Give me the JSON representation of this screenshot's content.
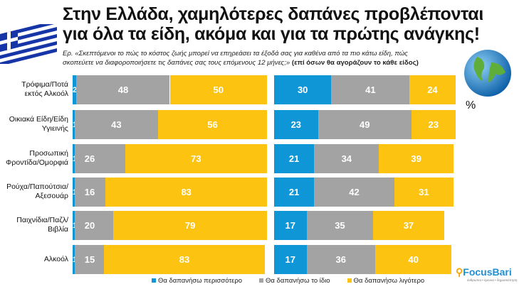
{
  "title_line1": "Στην Ελλάδα, χαμηλότερες δαπάνες προβλέπονται",
  "title_line2": "για όλα τα είδη, ακόμα και για τα πρώτης ανάγκης!",
  "question_line1": "Ερ. «Σκεπτόμενοι το πώς το κόστος ζωής μπορεί να επηρεάσει τα έξοδά σας για καθένα από τα πιο κάτω είδη, πώς",
  "question_line2": "σκοπεύετε να διαφοροποιήσετε τις δαπάνες σας τους επόμενους 12 μήνες;»",
  "question_note": "(επί όσων θα αγοράζουν το κάθε είδος)",
  "percent_label": "%",
  "logo": {
    "name": "FocusBari",
    "tagline": "άνθρωποι • έρευνα • δημοσκόπηση"
  },
  "colors": {
    "more": "#0f96d6",
    "same": "#a3a3a3",
    "less": "#fcc410"
  },
  "chart_data": [
    {
      "type": "bar",
      "orientation": "horizontal",
      "stacked": true,
      "region": "Ελλάδα",
      "categories": [
        [
          "Τρόφιμα/Ποτά",
          "εκτός Αλκοόλ"
        ],
        [
          "Οικιακά Είδη/Είδη",
          "Υγιεινής"
        ],
        [
          "Προσωπική",
          "Φροντίδα/Ομορφιά"
        ],
        [
          "Ρούχα/Παπούτσια/",
          "Αξεσουάρ"
        ],
        [
          "Παιχνίδια/Παζλ/",
          "Βιβλία"
        ],
        [
          "Αλκοόλ"
        ]
      ],
      "series": [
        {
          "name": "Θα δαπανήσω περισσότερο",
          "color": "#0f96d6",
          "values": [
            2,
            1,
            1,
            1,
            1,
            1
          ]
        },
        {
          "name": "Θα δαπανήσω το ίδιο",
          "color": "#a3a3a3",
          "values": [
            48,
            43,
            26,
            16,
            20,
            15
          ]
        },
        {
          "name": "Θα δαπανήσω λιγότερο",
          "color": "#fcc410",
          "values": [
            50,
            56,
            73,
            83,
            79,
            83
          ]
        }
      ],
      "xlim": [
        0,
        100
      ],
      "grid": false
    },
    {
      "type": "bar",
      "orientation": "horizontal",
      "stacked": true,
      "region": "world",
      "categories": [
        [
          "Τρόφιμα/Ποτά",
          "εκτός Αλκοόλ"
        ],
        [
          "Οικιακά Είδη/Είδη",
          "Υγιεινής"
        ],
        [
          "Προσωπική",
          "Φροντίδα/Ομορφιά"
        ],
        [
          "Ρούχα/Παπούτσια/",
          "Αξεσουάρ"
        ],
        [
          "Παιχνίδια/Παζλ/",
          "Βιβλία"
        ],
        [
          "Αλκοόλ"
        ]
      ],
      "series": [
        {
          "name": "Θα δαπανήσω περισσότερο",
          "color": "#0f96d6",
          "values": [
            30,
            23,
            21,
            21,
            17,
            17
          ]
        },
        {
          "name": "Θα δαπανήσω το ίδιο",
          "color": "#a3a3a3",
          "values": [
            41,
            49,
            34,
            42,
            35,
            36
          ]
        },
        {
          "name": "Θα δαπανήσω λιγότερο",
          "color": "#fcc410",
          "values": [
            24,
            23,
            39,
            31,
            37,
            40
          ]
        }
      ],
      "xlim": [
        0,
        100
      ],
      "grid": false
    }
  ],
  "legend": [
    "Θα δαπανήσω περισσότερο",
    "Θα δαπανήσω το ίδιο",
    "Θα δαπανήσω λιγότερο"
  ]
}
